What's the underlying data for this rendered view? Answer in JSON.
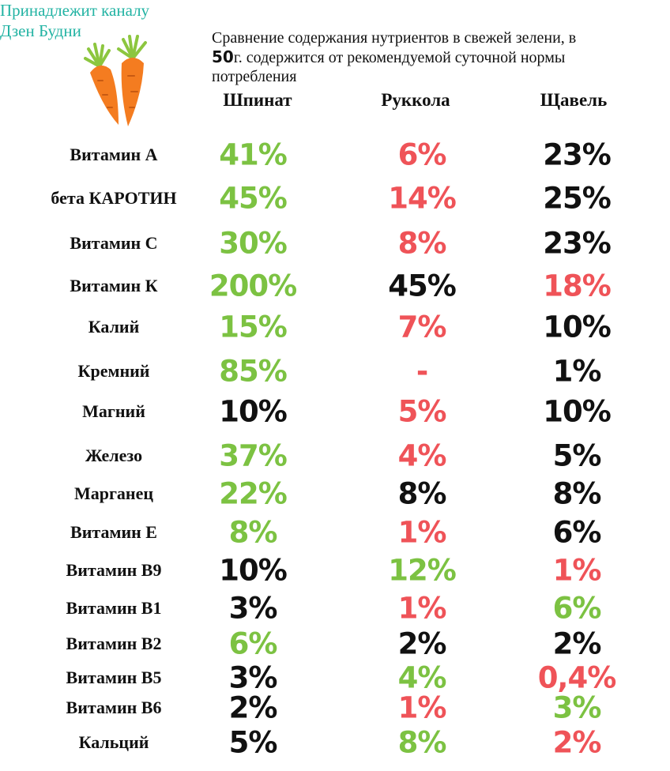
{
  "credit": {
    "line1": "Принадлежит каналу",
    "line2": "Дзен Будни"
  },
  "subtitle": {
    "line1": "Сравнение содержания нутриентов в свежей зелени, в",
    "line2_bold": "50",
    "line2_rest": "г. содержится от рекомендуемой суточной нормы",
    "line3": "потребления"
  },
  "columns": [
    "Шпинат",
    "Руккола",
    "Щавель"
  ],
  "colors": {
    "green": "#7cc242",
    "red": "#ef5358",
    "black": "#111111",
    "credit": "#22b3a3",
    "carrot": "#f47c20",
    "leaf": "#8cc63f"
  },
  "icons": {
    "decoration": "carrots-icon"
  },
  "rows": [
    {
      "label": "Витамин А",
      "values": [
        {
          "v": "41%",
          "c": "green"
        },
        {
          "v": "6%",
          "c": "red"
        },
        {
          "v": "23%",
          "c": "black"
        }
      ]
    },
    {
      "label": "бета КАРОТИН",
      "values": [
        {
          "v": "45%",
          "c": "green"
        },
        {
          "v": "14%",
          "c": "red"
        },
        {
          "v": "25%",
          "c": "black"
        }
      ]
    },
    {
      "label": "Витамин С",
      "values": [
        {
          "v": "30%",
          "c": "green"
        },
        {
          "v": "8%",
          "c": "red"
        },
        {
          "v": "23%",
          "c": "black"
        }
      ]
    },
    {
      "label": "Витамин К",
      "values": [
        {
          "v": "200%",
          "c": "green"
        },
        {
          "v": "45%",
          "c": "black"
        },
        {
          "v": "18%",
          "c": "red"
        }
      ]
    },
    {
      "label": "Калий",
      "values": [
        {
          "v": "15%",
          "c": "green"
        },
        {
          "v": "7%",
          "c": "red"
        },
        {
          "v": "10%",
          "c": "black"
        }
      ]
    },
    {
      "label": "Кремний",
      "values": [
        {
          "v": "85%",
          "c": "green"
        },
        {
          "v": "-",
          "c": "red"
        },
        {
          "v": "1%",
          "c": "black"
        }
      ]
    },
    {
      "label": "Магний",
      "values": [
        {
          "v": "10%",
          "c": "black"
        },
        {
          "v": "5%",
          "c": "red"
        },
        {
          "v": "10%",
          "c": "black"
        }
      ]
    },
    {
      "label": "Железо",
      "values": [
        {
          "v": "37%",
          "c": "green"
        },
        {
          "v": "4%",
          "c": "red"
        },
        {
          "v": "5%",
          "c": "black"
        }
      ]
    },
    {
      "label": "Марганец",
      "values": [
        {
          "v": "22%",
          "c": "green"
        },
        {
          "v": "8%",
          "c": "black"
        },
        {
          "v": "8%",
          "c": "black"
        }
      ]
    },
    {
      "label": "Витамин Е",
      "values": [
        {
          "v": "8%",
          "c": "green"
        },
        {
          "v": "1%",
          "c": "red"
        },
        {
          "v": "6%",
          "c": "black"
        }
      ]
    },
    {
      "label": "Витамин В9",
      "values": [
        {
          "v": "10%",
          "c": "black"
        },
        {
          "v": "12%",
          "c": "green"
        },
        {
          "v": "1%",
          "c": "red"
        }
      ]
    },
    {
      "label": "Витамин В1",
      "values": [
        {
          "v": "3%",
          "c": "black"
        },
        {
          "v": "1%",
          "c": "red"
        },
        {
          "v": "6%",
          "c": "green"
        }
      ]
    },
    {
      "label": "Витамин В2",
      "values": [
        {
          "v": "6%",
          "c": "green"
        },
        {
          "v": "2%",
          "c": "black"
        },
        {
          "v": "2%",
          "c": "black"
        }
      ]
    },
    {
      "label": "Витамин В5",
      "values": [
        {
          "v": "3%",
          "c": "black"
        },
        {
          "v": "4%",
          "c": "green"
        },
        {
          "v": "0,4%",
          "c": "red"
        }
      ]
    },
    {
      "label": "Витамин В6",
      "values": [
        {
          "v": "2%",
          "c": "black"
        },
        {
          "v": "1%",
          "c": "red"
        },
        {
          "v": "3%",
          "c": "green"
        }
      ]
    },
    {
      "label": "Кальций",
      "values": [
        {
          "v": "5%",
          "c": "black"
        },
        {
          "v": "8%",
          "c": "green"
        },
        {
          "v": "2%",
          "c": "red"
        }
      ]
    }
  ]
}
